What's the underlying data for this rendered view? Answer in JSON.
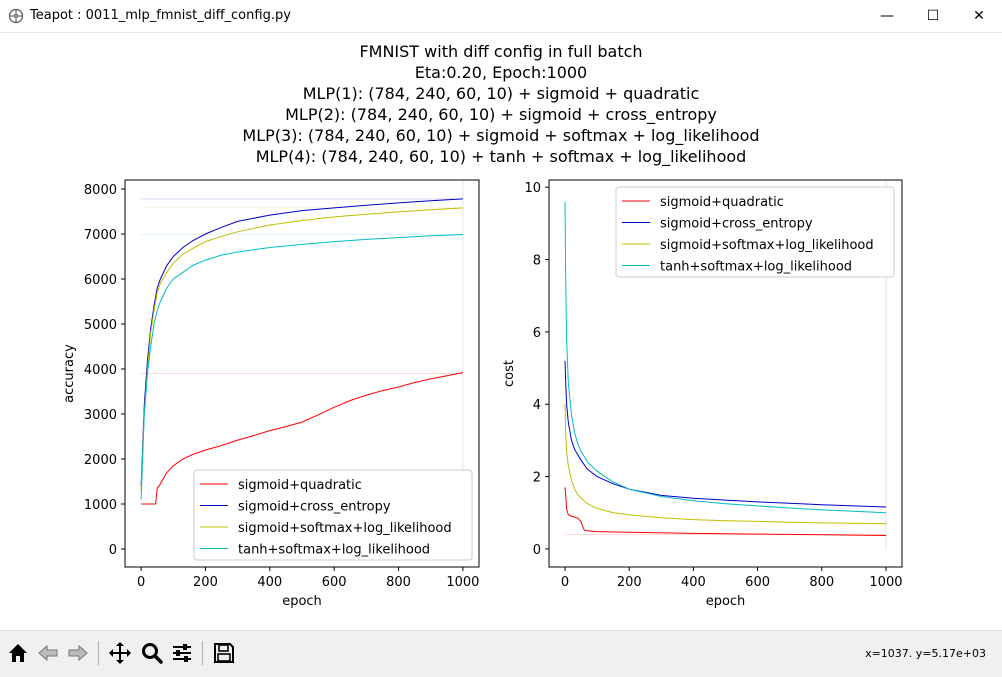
{
  "window": {
    "title": "Teapot : 0011_mlp_fmnist_diff_config.py",
    "minimize_glyph": "—",
    "maximize_glyph": "☐",
    "close_glyph": "✕"
  },
  "figure": {
    "title_lines": [
      "FMNIST with diff config in full batch",
      "Eta:0.20, Epoch:1000",
      "MLP(1): (784, 240, 60, 10) + sigmoid + quadratic",
      "MLP(2): (784, 240, 60, 10) + sigmoid + cross_entropy",
      "MLP(3): (784, 240, 60, 10) + sigmoid + softmax + log_likelihood",
      "MLP(4): (784, 240, 60, 10) + tanh + softmax + log_likelihood"
    ]
  },
  "chart_data": [
    {
      "type": "line",
      "xlabel": "epoch",
      "ylabel": "accuracy",
      "xlim": [
        -50,
        1050
      ],
      "ylim": [
        -400,
        8200
      ],
      "xticks": [
        0,
        200,
        400,
        600,
        800,
        1000
      ],
      "yticks": [
        0,
        1000,
        2000,
        3000,
        4000,
        5000,
        6000,
        7000,
        8000
      ],
      "grid": false,
      "legend_position": "lower-right",
      "series": [
        {
          "name": "sigmoid+quadratic",
          "color": "#ff0000",
          "x": [
            0,
            45,
            50,
            60,
            80,
            100,
            130,
            160,
            200,
            250,
            300,
            350,
            400,
            450,
            500,
            550,
            600,
            650,
            700,
            750,
            800,
            850,
            900,
            950,
            1000
          ],
          "y": [
            1000,
            1000,
            1350,
            1450,
            1700,
            1850,
            2000,
            2100,
            2200,
            2300,
            2420,
            2520,
            2630,
            2720,
            2820,
            2980,
            3150,
            3300,
            3420,
            3520,
            3600,
            3700,
            3780,
            3850,
            3920
          ],
          "ref_y": 3900
        },
        {
          "name": "sigmoid+cross_entropy",
          "color": "#0000cc",
          "x": [
            0,
            10,
            20,
            30,
            40,
            50,
            60,
            80,
            100,
            130,
            160,
            200,
            250,
            300,
            400,
            500,
            600,
            700,
            800,
            900,
            1000
          ],
          "y": [
            1400,
            3200,
            4200,
            4900,
            5400,
            5800,
            6000,
            6300,
            6500,
            6700,
            6850,
            7000,
            7150,
            7280,
            7420,
            7520,
            7580,
            7640,
            7690,
            7740,
            7780
          ],
          "ref_y": 7780
        },
        {
          "name": "sigmoid+softmax+log_likelihood",
          "color": "#bfbf00",
          "x": [
            0,
            10,
            20,
            30,
            40,
            50,
            60,
            80,
            100,
            130,
            160,
            200,
            250,
            300,
            400,
            500,
            600,
            700,
            800,
            900,
            1000
          ],
          "y": [
            1300,
            3000,
            4000,
            4800,
            5300,
            5700,
            5900,
            6150,
            6350,
            6550,
            6680,
            6830,
            6950,
            7050,
            7200,
            7300,
            7380,
            7440,
            7490,
            7540,
            7580
          ],
          "ref_y": 7580
        },
        {
          "name": "tanh+softmax+log_likelihood",
          "color": "#00bfbf",
          "x": [
            0,
            10,
            20,
            30,
            40,
            50,
            60,
            80,
            100,
            130,
            160,
            200,
            250,
            300,
            400,
            500,
            600,
            700,
            800,
            900,
            1000
          ],
          "y": [
            1100,
            3000,
            3900,
            4500,
            5000,
            5300,
            5500,
            5800,
            6000,
            6150,
            6300,
            6420,
            6530,
            6600,
            6700,
            6770,
            6830,
            6880,
            6920,
            6960,
            6990
          ],
          "ref_y": 6990
        }
      ]
    },
    {
      "type": "line",
      "xlabel": "epoch",
      "ylabel": "cost",
      "xlim": [
        -50,
        1050
      ],
      "ylim": [
        -0.5,
        10.2
      ],
      "xticks": [
        0,
        200,
        400,
        600,
        800,
        1000
      ],
      "yticks": [
        0,
        2,
        4,
        6,
        8,
        10
      ],
      "grid": false,
      "legend_position": "upper-right",
      "series": [
        {
          "name": "sigmoid+quadratic",
          "color": "#ff0000",
          "x": [
            0,
            2,
            5,
            10,
            20,
            30,
            40,
            50,
            55,
            60,
            70,
            100,
            200,
            400,
            600,
            800,
            1000
          ],
          "y": [
            1.7,
            1.5,
            1.1,
            0.95,
            0.9,
            0.88,
            0.85,
            0.75,
            0.62,
            0.52,
            0.5,
            0.48,
            0.46,
            0.43,
            0.41,
            0.39,
            0.37
          ],
          "ref_y": 0.4
        },
        {
          "name": "sigmoid+cross_entropy",
          "color": "#0000cc",
          "x": [
            0,
            2,
            5,
            10,
            20,
            30,
            40,
            50,
            70,
            100,
            150,
            200,
            300,
            400,
            500,
            600,
            700,
            800,
            900,
            1000
          ],
          "y": [
            5.2,
            4.6,
            4.0,
            3.5,
            3.0,
            2.75,
            2.6,
            2.45,
            2.2,
            2.0,
            1.8,
            1.65,
            1.48,
            1.4,
            1.35,
            1.3,
            1.26,
            1.22,
            1.19,
            1.16
          ]
        },
        {
          "name": "sigmoid+softmax+log_likelihood",
          "color": "#bfbf00",
          "x": [
            0,
            2,
            5,
            10,
            20,
            30,
            40,
            50,
            70,
            100,
            150,
            200,
            300,
            400,
            500,
            600,
            700,
            800,
            900,
            1000
          ],
          "y": [
            4.0,
            3.2,
            2.7,
            2.3,
            1.9,
            1.65,
            1.5,
            1.4,
            1.25,
            1.12,
            1.0,
            0.94,
            0.86,
            0.81,
            0.78,
            0.76,
            0.74,
            0.72,
            0.71,
            0.7
          ]
        },
        {
          "name": "tanh+softmax+log_likelihood",
          "color": "#00bfbf",
          "x": [
            0,
            2,
            5,
            10,
            20,
            30,
            40,
            50,
            70,
            100,
            150,
            200,
            300,
            400,
            500,
            600,
            700,
            800,
            900,
            1000
          ],
          "y": [
            9.6,
            7.5,
            5.8,
            4.6,
            3.7,
            3.2,
            2.9,
            2.7,
            2.4,
            2.15,
            1.85,
            1.65,
            1.45,
            1.33,
            1.25,
            1.19,
            1.13,
            1.08,
            1.04,
            1.0
          ]
        }
      ]
    }
  ],
  "toolbar": {
    "coords_text": "x=1037. y=5.17e+03",
    "buttons": [
      "home-icon",
      "back-icon",
      "forward-icon",
      "pan-icon",
      "zoom-icon",
      "configure-icon",
      "save-icon"
    ]
  }
}
